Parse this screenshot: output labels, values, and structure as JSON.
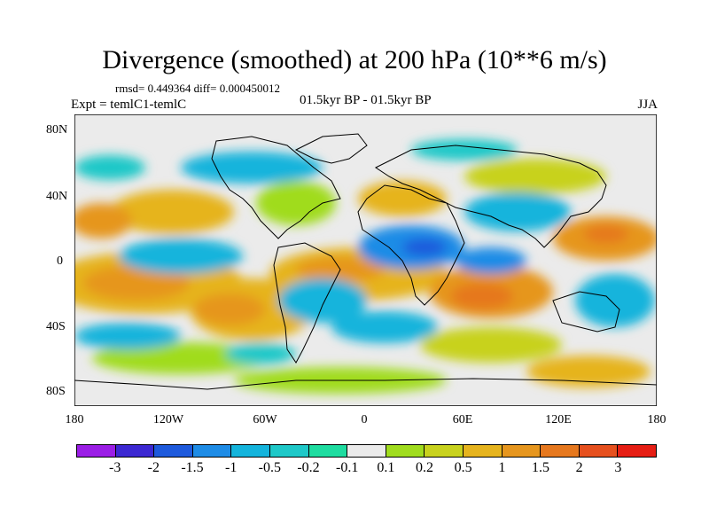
{
  "title": "Divergence (smoothed) at 200 hPa (10**6 m/s)",
  "stats": "rmsd= 0.449364 diff= 0.000450012",
  "experiment": "Expt = temlC1-temlC",
  "period": "01.5kyr BP - 01.5kyr BP",
  "season": "JJA",
  "lat_labels": [
    "80N",
    "40N",
    "0",
    "40S",
    "80S"
  ],
  "lon_labels": [
    "180",
    "120W",
    "60W",
    "0",
    "60E",
    "120E",
    "180"
  ],
  "colorbar": {
    "colors": [
      "#9b1ee6",
      "#3c28d2",
      "#1e5adc",
      "#1e8ce6",
      "#14b4dc",
      "#1ec8c8",
      "#1edca0",
      "#ebebeb",
      "#a0dc1e",
      "#c8d21e",
      "#e6b41e",
      "#e6961e",
      "#e6781e",
      "#e6501e",
      "#e61e14"
    ],
    "labels": [
      "-3",
      "-2",
      "-1.5",
      "-1",
      "-0.5",
      "-0.2",
      "-0.1",
      "0.1",
      "0.2",
      "0.5",
      "1",
      "1.5",
      "2",
      "3"
    ]
  }
}
